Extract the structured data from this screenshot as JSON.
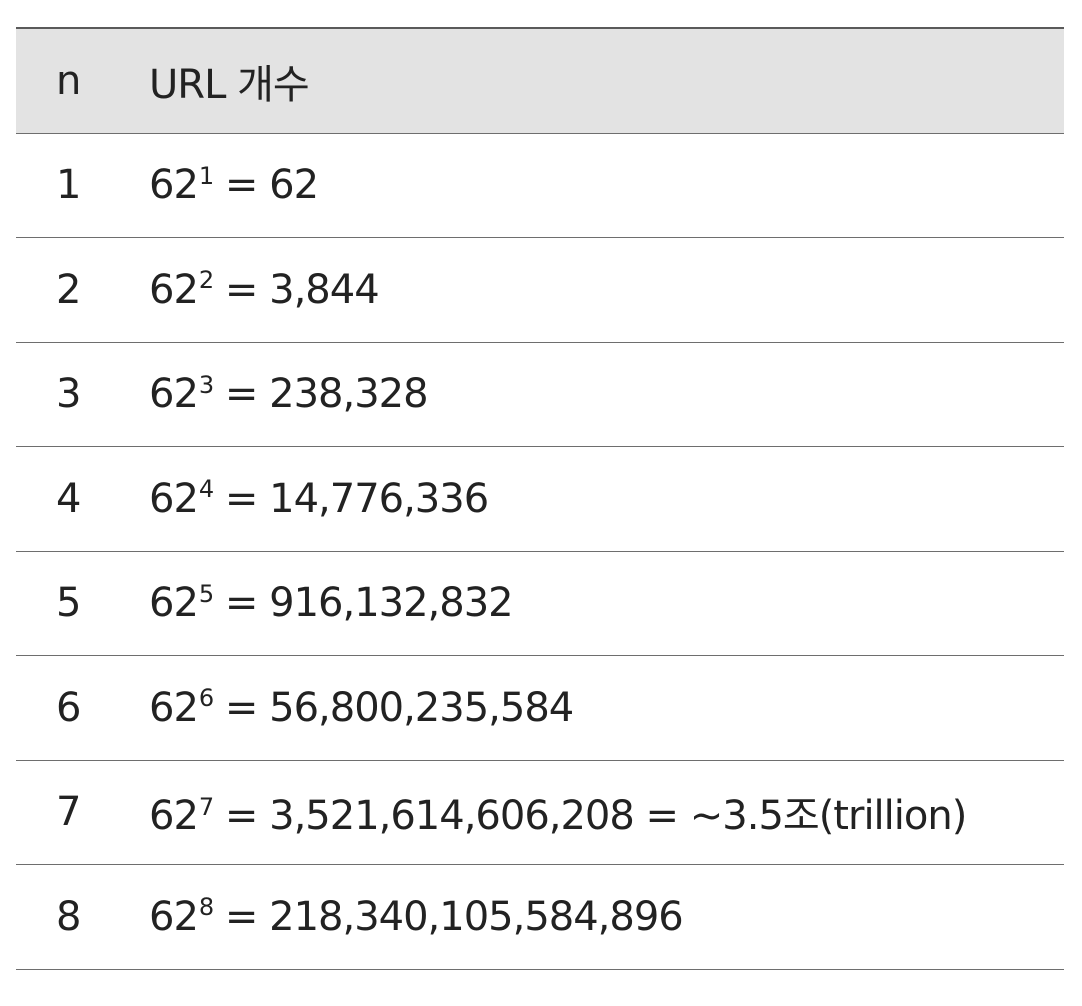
{
  "table": {
    "header": {
      "n": "n",
      "value": "URL 개수"
    },
    "rows": [
      {
        "n": "1",
        "base": "62",
        "exp": "1",
        "result": " = 62"
      },
      {
        "n": "2",
        "base": "62",
        "exp": "2",
        "result": " = 3,844"
      },
      {
        "n": "3",
        "base": "62",
        "exp": "3",
        "result": " = 238,328"
      },
      {
        "n": "4",
        "base": "62",
        "exp": "4",
        "result": " = 14,776,336"
      },
      {
        "n": "5",
        "base": "62",
        "exp": "5",
        "result": " = 916,132,832"
      },
      {
        "n": "6",
        "base": "62",
        "exp": "6",
        "result": " = 56,800,235,584"
      },
      {
        "n": "7",
        "base": "62",
        "exp": "7",
        "result": " = 3,521,614,606,208 = ~3.5조(trillion)"
      },
      {
        "n": "8",
        "base": "62",
        "exp": "8",
        "result": " = 218,340,105,584,896"
      }
    ]
  }
}
